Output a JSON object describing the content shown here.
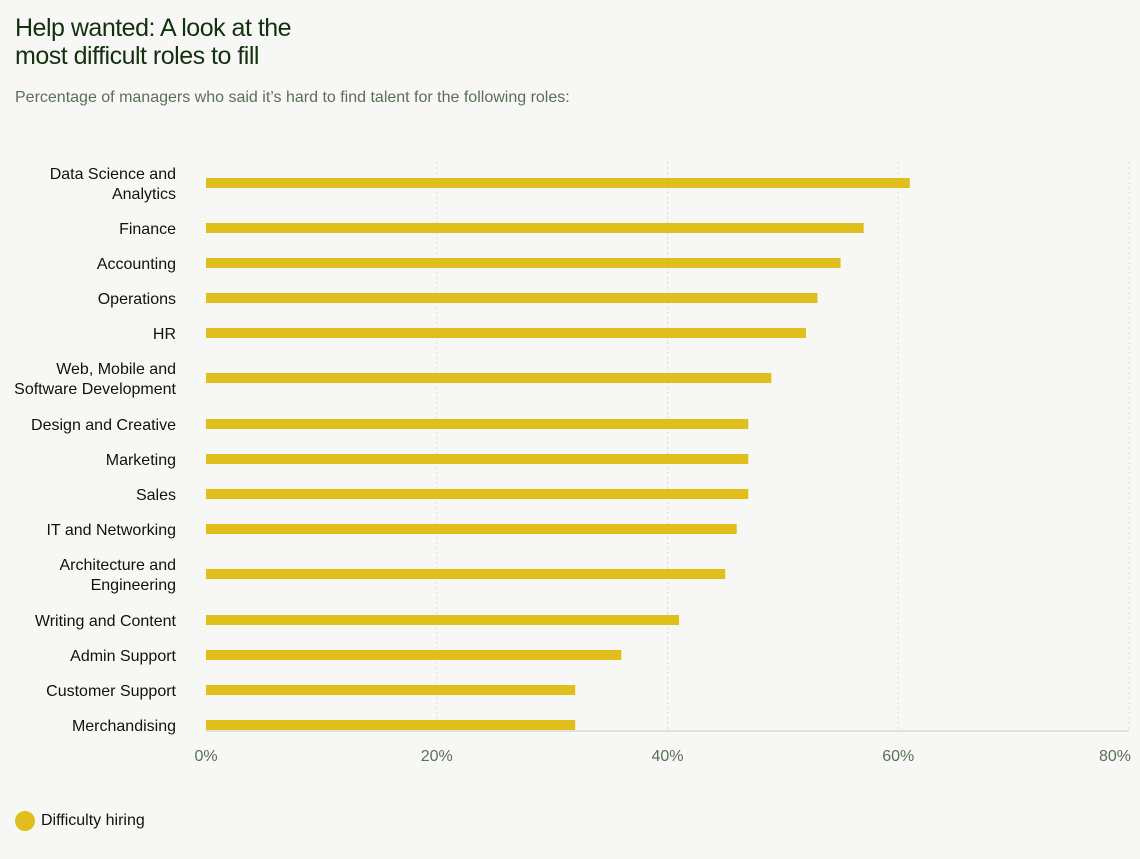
{
  "title_lines": [
    "Help wanted: A look at the",
    "most difficult roles to fill"
  ],
  "subtitle": "Percentage of managers who said it’s hard to find talent for the following roles:",
  "colors": {
    "bar": "#e0bf1c",
    "grid": "#d9ddd5",
    "axis": "#c9cec4"
  },
  "legend": {
    "label": "Difficulty hiring"
  },
  "chart_data": {
    "type": "bar",
    "orientation": "horizontal",
    "categories": [
      [
        "Data Science and",
        "Analytics"
      ],
      [
        "Finance"
      ],
      [
        "Accounting"
      ],
      [
        "Operations"
      ],
      [
        "HR"
      ],
      [
        "Web, Mobile and",
        "Software Development"
      ],
      [
        "Design and Creative"
      ],
      [
        "Marketing"
      ],
      [
        "Sales"
      ],
      [
        "IT and Networking"
      ],
      [
        "Architecture and",
        "Engineering"
      ],
      [
        "Writing and Content"
      ],
      [
        "Admin Support"
      ],
      [
        "Customer Support"
      ],
      [
        "Merchandising"
      ]
    ],
    "series": [
      {
        "name": "Difficulty hiring",
        "values": [
          61,
          57,
          55,
          53,
          52,
          49,
          47,
          47,
          47,
          46,
          45,
          41,
          36,
          32,
          32
        ]
      }
    ],
    "xlim": [
      0,
      80
    ],
    "xticks": [
      0,
      20,
      40,
      60,
      80
    ],
    "tick_labels": [
      "0%",
      "20%",
      "40%",
      "60%",
      "80%"
    ],
    "grid": true,
    "legend_position": "bottom-left"
  }
}
